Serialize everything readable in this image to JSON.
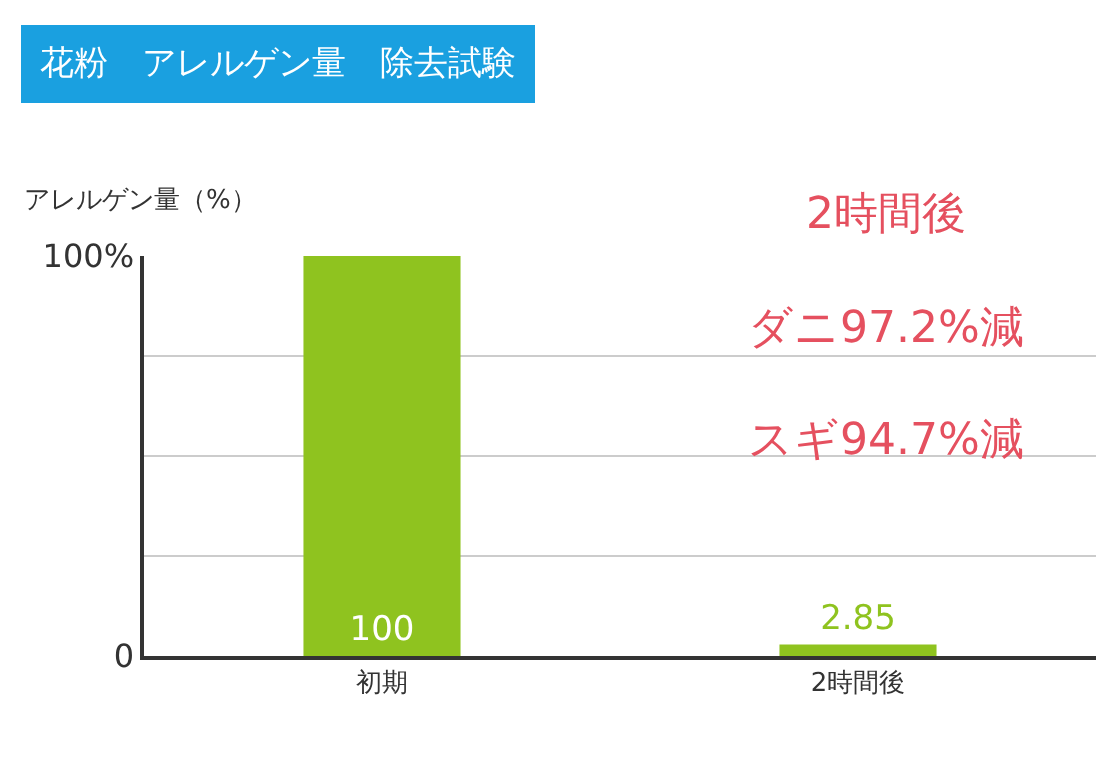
{
  "chart_data": {
    "type": "bar",
    "title": "花粉　アレルゲン量　除去試験",
    "ylabel": "アレルゲン量（%）",
    "categories": [
      "初期",
      "2時間後"
    ],
    "values": [
      100,
      2.85
    ],
    "color": "#8fc31f",
    "data_labels": true,
    "ylim": [
      0,
      100
    ],
    "yticks": [
      {
        "value": 0,
        "label": "0"
      },
      {
        "value": 25,
        "label": null
      },
      {
        "value": 50,
        "label": null
      },
      {
        "value": 75,
        "label": null
      },
      {
        "value": 100,
        "label": "100%"
      }
    ],
    "grid": "y",
    "annotations": [
      "2時間後",
      "ダニ97.2%減",
      "スギ94.7%減"
    ]
  }
}
